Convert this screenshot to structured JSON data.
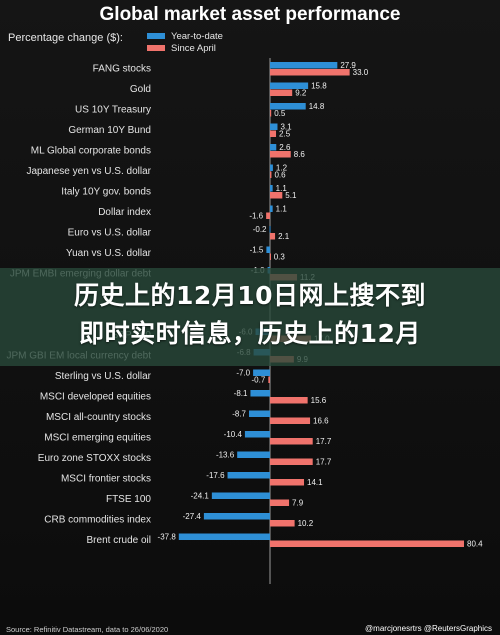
{
  "chart_data": {
    "type": "bar",
    "title": "Global market asset performance",
    "ylabel": "Percentage change ($):",
    "series": [
      {
        "name": "Year-to-date",
        "color": "#2e8fd6",
        "values": [
          27.9,
          15.8,
          14.8,
          3.1,
          2.6,
          1.2,
          1.1,
          1.1,
          -0.2,
          -1.5,
          -1.0,
          null,
          null,
          -6.0,
          -6.8,
          -7.0,
          -8.1,
          -8.7,
          -10.4,
          -13.6,
          -17.6,
          -24.1,
          -27.4,
          -37.8
        ]
      },
      {
        "name": "Since April",
        "color": "#f0736c",
        "values": [
          33.0,
          9.2,
          0.5,
          2.5,
          8.6,
          0.6,
          5.1,
          -1.6,
          2.1,
          0.3,
          11.2,
          null,
          null,
          17.0,
          9.9,
          -0.7,
          15.6,
          16.6,
          17.7,
          17.7,
          14.1,
          7.9,
          10.2,
          80.4
        ]
      }
    ],
    "categories": [
      "FANG stocks",
      "Gold",
      "US 10Y Treasury",
      "German 10Y Bund",
      "ML Global corporate bonds",
      "Japanese yen vs U.S. dollar",
      "Italy 10Y gov. bonds",
      "Dollar index",
      "Euro vs U.S. dollar",
      "Yuan vs U.S. dollar",
      "JPM EMBI emerging dollar debt",
      "",
      "",
      "S&P 500",
      "JPM GBI EM local currency debt",
      "Sterling vs U.S. dollar",
      "MSCI developed equities",
      "MSCI all-country stocks",
      "MSCI emerging equities",
      "Euro zone STOXX stocks",
      "MSCI frontier stocks",
      "FTSE 100",
      "CRB commodities index",
      "Brent crude oil"
    ],
    "ytd_labels": [
      "27.9",
      "15.8",
      "14.8",
      "3.1",
      "2.6",
      "1.2",
      "1.1",
      "1.1",
      "-0.2",
      "-1.5",
      "-1.0",
      "",
      "",
      "-6.0",
      "-6.8",
      "-7.0",
      "-8.1",
      "-8.7",
      "-10.4",
      "-13.6",
      "-17.6",
      "-24.1",
      "-27.4",
      "-37.8"
    ],
    "apr_labels": [
      "33.0",
      "9.2",
      "0.5",
      "2.5",
      "8.6",
      "0.6",
      "5.1",
      "-1.6",
      "2.1",
      "0.3",
      "11.2",
      "",
      "",
      "17.0",
      "9.9",
      "-0.7",
      "15.6",
      "16.6",
      "17.7",
      "17.7",
      "14.1",
      "7.9",
      "10.2",
      "80.4"
    ],
    "xlim": [
      -40,
      82
    ],
    "grid": false,
    "legend": "top-left"
  },
  "overlay": {
    "line1": "历史上的12月10日网上搜不到",
    "line2": "即时实时信息，历史上的12月"
  },
  "footer": {
    "source": "Source: Refinitiv Datastream, data to 26/06/2020",
    "credit": "@marcjonesrtrs @ReutersGraphics"
  }
}
